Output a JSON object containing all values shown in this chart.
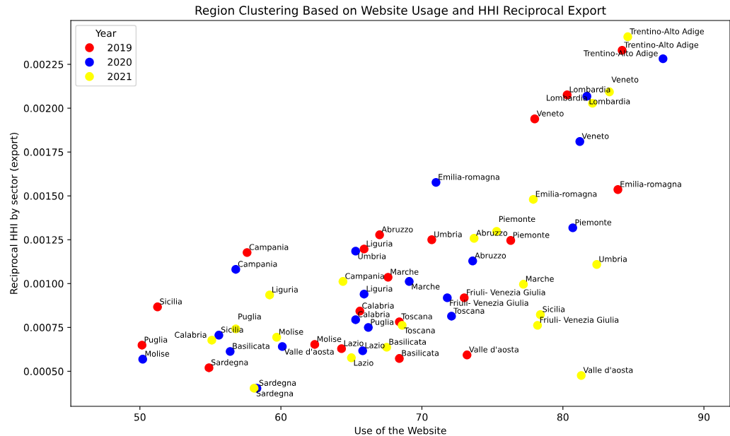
{
  "chart_data": {
    "type": "scatter",
    "title": "Region Clustering Based on Website Usage and HHI Reciprocal Export",
    "xlabel": "Use of the Website",
    "ylabel": "Reciprocal HHI by sector (export)",
    "legend_title": "Year",
    "legend": "top left",
    "marker": "circle",
    "grid": false,
    "xlim": [
      45.1,
      91.85
    ],
    "ylim": [
      0.0003,
      0.0025
    ],
    "xticks": [
      50,
      60,
      70,
      80,
      90
    ],
    "yticks": [
      {
        "value": 0.0005,
        "label": "0.00050"
      },
      {
        "value": 0.00075,
        "label": "0.00075"
      },
      {
        "value": 0.001,
        "label": "0.00100"
      },
      {
        "value": 0.00125,
        "label": "0.00125"
      },
      {
        "value": 0.0015,
        "label": "0.00150"
      },
      {
        "value": 0.00175,
        "label": "0.00175"
      },
      {
        "value": 0.002,
        "label": "0.00200"
      },
      {
        "value": 0.00225,
        "label": "0.00225"
      }
    ],
    "series": [
      {
        "name": "2019",
        "color": "#ff0000",
        "x": [
          51.25,
          50.15,
          54.9,
          57.6,
          62.4,
          64.3,
          65.9,
          67.0,
          65.6,
          67.6,
          68.4,
          68.4,
          70.7,
          73.0,
          73.2,
          76.3,
          78.0,
          80.3,
          83.9,
          84.2
        ],
        "values": [
          0.000867,
          0.000649,
          0.00052,
          0.001177,
          0.000653,
          0.000629,
          0.001197,
          0.001278,
          0.000843,
          0.001036,
          0.000782,
          0.000573,
          0.00125,
          0.000919,
          0.000593,
          0.001246,
          0.001939,
          0.002076,
          0.001536,
          0.00233
        ]
      },
      {
        "name": "2020",
        "color": "#0000ff",
        "x": [
          50.2,
          55.6,
          56.4,
          56.8,
          58.3,
          60.1,
          65.3,
          65.9,
          65.3,
          65.8,
          66.2,
          69.1,
          71.0,
          71.8,
          72.1,
          73.6,
          80.7,
          81.2,
          81.7,
          87.1
        ],
        "values": [
          0.000569,
          0.000706,
          0.000613,
          0.001081,
          0.000403,
          0.000641,
          0.001185,
          0.00094,
          0.000794,
          0.000617,
          0.00075,
          0.001012,
          0.001577,
          0.000919,
          0.000814,
          0.001129,
          0.001318,
          0.00181,
          0.002068,
          0.002282
        ]
      },
      {
        "name": "2021",
        "color": "#ffff00",
        "x": [
          55.1,
          56.8,
          58.1,
          59.2,
          59.7,
          64.4,
          65.0,
          67.5,
          68.6,
          73.7,
          75.3,
          77.2,
          78.2,
          78.4,
          77.9,
          82.4,
          81.3,
          82.1,
          83.3,
          84.6
        ],
        "values": [
          0.000677,
          0.000742,
          0.000403,
          0.000935,
          0.000694,
          0.001012,
          0.000577,
          0.000637,
          0.000762,
          0.001258,
          0.001298,
          0.000996,
          0.000762,
          0.000823,
          0.00148,
          0.001109,
          0.000476,
          0.002028,
          0.002093,
          0.002407
        ]
      }
    ],
    "annotations": [
      {
        "text": "Sicilia",
        "x": 51.25,
        "y": 0.000867
      },
      {
        "text": "Puglia",
        "x": 50.15,
        "y": 0.000649
      },
      {
        "text": "Sardegna",
        "x": 54.9,
        "y": 0.00052
      },
      {
        "text": "Campania",
        "x": 57.6,
        "y": 0.001177
      },
      {
        "text": "Molise",
        "x": 62.4,
        "y": 0.000653
      },
      {
        "text": "Lazio",
        "x": 64.3,
        "y": 0.000629
      },
      {
        "text": "Liguria",
        "x": 65.9,
        "y": 0.001197
      },
      {
        "text": "Abruzzo",
        "x": 67.0,
        "y": 0.001278
      },
      {
        "text": "Calabria",
        "x": 65.6,
        "y": 0.000843
      },
      {
        "text": "Marche",
        "x": 67.6,
        "y": 0.001036
      },
      {
        "text": "Toscana",
        "x": 68.4,
        "y": 0.000782
      },
      {
        "text": "Basilicata",
        "x": 68.4,
        "y": 0.000573
      },
      {
        "text": "Umbria",
        "x": 70.7,
        "y": 0.00125
      },
      {
        "text": "Friuli- Venezia Giulia",
        "x": 73.0,
        "y": 0.000919
      },
      {
        "text": "Valle d'aosta",
        "x": 73.2,
        "y": 0.000593
      },
      {
        "text": "Piemonte",
        "x": 76.3,
        "y": 0.001246
      },
      {
        "text": "Veneto",
        "x": 78.0,
        "y": 0.001939
      },
      {
        "text": "Lombardia",
        "x": 80.3,
        "y": 0.002076
      },
      {
        "text": "Emilia-romagna",
        "x": 83.9,
        "y": 0.001536
      },
      {
        "text": "Trentino-Alto Adige",
        "x": 84.2,
        "y": 0.00233
      },
      {
        "text": "Molise",
        "x": 50.2,
        "y": 0.000569
      },
      {
        "text": "Sicilia",
        "x": 55.6,
        "y": 0.000706
      },
      {
        "text": "Basilicata",
        "x": 56.4,
        "y": 0.000613
      },
      {
        "text": "Campania",
        "x": 56.8,
        "y": 0.001081
      },
      {
        "text": "Sardegna",
        "x": 58.3,
        "y": 0.000403
      },
      {
        "text": "Valle d'aosta",
        "x": 60.1,
        "y": 0.000641
      },
      {
        "text": "Umbria",
        "x": 65.3,
        "y": 0.001185
      },
      {
        "text": "Liguria",
        "x": 65.9,
        "y": 0.00094
      },
      {
        "text": "Calabria",
        "x": 65.3,
        "y": 0.000794
      },
      {
        "text": "Lazio",
        "x": 65.8,
        "y": 0.000617
      },
      {
        "text": "Puglia",
        "x": 66.2,
        "y": 0.00075
      },
      {
        "text": "Marche",
        "x": 69.1,
        "y": 0.001012
      },
      {
        "text": "Emilia-romagna",
        "x": 71.0,
        "y": 0.001577
      },
      {
        "text": "Friuli- Venezia Giulia",
        "x": 71.8,
        "y": 0.000919
      },
      {
        "text": "Toscana",
        "x": 72.1,
        "y": 0.000814
      },
      {
        "text": "Abruzzo",
        "x": 73.6,
        "y": 0.001129
      },
      {
        "text": "Piemonte",
        "x": 80.7,
        "y": 0.001318
      },
      {
        "text": "Veneto",
        "x": 81.2,
        "y": 0.00181
      },
      {
        "text": "Lombardia",
        "x": 81.7,
        "y": 0.002068
      },
      {
        "text": "Trentino-Alto Adige",
        "x": 87.1,
        "y": 0.002282
      },
      {
        "text": "Calabria",
        "x": 55.1,
        "y": 0.000677
      },
      {
        "text": "Puglia",
        "x": 56.8,
        "y": 0.000742
      },
      {
        "text": "Sardegna",
        "x": 58.1,
        "y": 0.000403
      },
      {
        "text": "Liguria",
        "x": 59.2,
        "y": 0.000935
      },
      {
        "text": "Molise",
        "x": 59.7,
        "y": 0.000694
      },
      {
        "text": "Campania",
        "x": 64.4,
        "y": 0.001012
      },
      {
        "text": "Lazio",
        "x": 65.0,
        "y": 0.000577
      },
      {
        "text": "Basilicata",
        "x": 67.5,
        "y": 0.000637
      },
      {
        "text": "Toscana",
        "x": 68.6,
        "y": 0.000762
      },
      {
        "text": "Abruzzo",
        "x": 73.7,
        "y": 0.001258
      },
      {
        "text": "Piemonte",
        "x": 75.3,
        "y": 0.001298
      },
      {
        "text": "Marche",
        "x": 77.2,
        "y": 0.000996
      },
      {
        "text": "Friuli- Venezia Giulia",
        "x": 78.2,
        "y": 0.000762
      },
      {
        "text": "Sicilia",
        "x": 78.4,
        "y": 0.000823
      },
      {
        "text": "Emilia-romagna",
        "x": 77.9,
        "y": 0.00148
      },
      {
        "text": "Umbria",
        "x": 82.4,
        "y": 0.001109
      },
      {
        "text": "Valle d'aosta",
        "x": 81.3,
        "y": 0.000476
      },
      {
        "text": "Lombardia",
        "x": 82.1,
        "y": 0.002028
      },
      {
        "text": "Veneto",
        "x": 83.3,
        "y": 0.002093
      },
      {
        "text": "Trentino-Alto Adige",
        "x": 84.6,
        "y": 0.002407
      }
    ]
  }
}
